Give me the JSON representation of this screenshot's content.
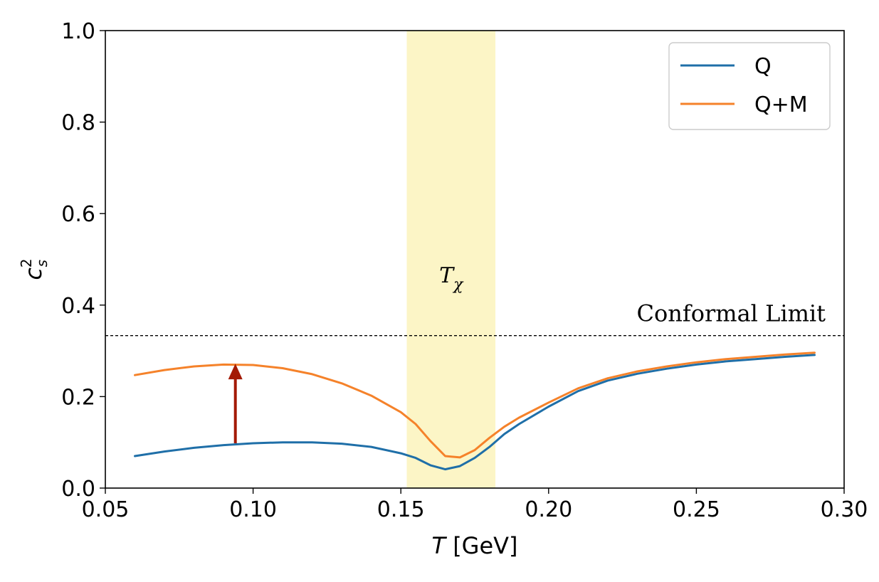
{
  "chart_data": {
    "type": "line",
    "xlabel_var": "T",
    "xlabel_unit": " [GeV]",
    "ylabel_var": "c",
    "ylabel_sup": "2",
    "ylabel_sub": "s",
    "xlim": [
      0.05,
      0.3
    ],
    "ylim": [
      0.0,
      1.0
    ],
    "xticks": [
      0.05,
      0.1,
      0.15,
      0.2,
      0.25,
      0.3
    ],
    "xtick_labels": [
      "0.05",
      "0.10",
      "0.15",
      "0.20",
      "0.25",
      "0.30"
    ],
    "yticks": [
      0.0,
      0.2,
      0.4,
      0.6,
      0.8,
      1.0
    ],
    "ytick_labels": [
      "0.0",
      "0.2",
      "0.4",
      "0.6",
      "0.8",
      "1.0"
    ],
    "grid": false,
    "legend_position": "top-right",
    "series": [
      {
        "name": "Q",
        "color": "#1f6fa8",
        "x": [
          0.06,
          0.07,
          0.08,
          0.09,
          0.1,
          0.11,
          0.12,
          0.13,
          0.14,
          0.15,
          0.155,
          0.16,
          0.165,
          0.17,
          0.175,
          0.18,
          0.185,
          0.19,
          0.2,
          0.21,
          0.22,
          0.23,
          0.24,
          0.25,
          0.26,
          0.27,
          0.28,
          0.29
        ],
        "y": [
          0.07,
          0.08,
          0.088,
          0.094,
          0.098,
          0.1,
          0.1,
          0.097,
          0.09,
          0.076,
          0.066,
          0.05,
          0.041,
          0.048,
          0.066,
          0.09,
          0.118,
          0.14,
          0.178,
          0.212,
          0.235,
          0.25,
          0.261,
          0.27,
          0.277,
          0.282,
          0.287,
          0.291
        ]
      },
      {
        "name": "Q+M",
        "color": "#f5822a",
        "x": [
          0.06,
          0.07,
          0.08,
          0.09,
          0.1,
          0.11,
          0.12,
          0.13,
          0.14,
          0.15,
          0.155,
          0.16,
          0.165,
          0.17,
          0.175,
          0.18,
          0.185,
          0.19,
          0.2,
          0.21,
          0.22,
          0.23,
          0.24,
          0.25,
          0.26,
          0.27,
          0.28,
          0.29
        ],
        "y": [
          0.247,
          0.258,
          0.266,
          0.27,
          0.269,
          0.262,
          0.249,
          0.229,
          0.202,
          0.166,
          0.14,
          0.103,
          0.07,
          0.067,
          0.083,
          0.11,
          0.134,
          0.154,
          0.187,
          0.218,
          0.24,
          0.255,
          0.266,
          0.275,
          0.282,
          0.287,
          0.292,
          0.296
        ]
      }
    ],
    "band": {
      "x_start": 0.152,
      "x_end": 0.182,
      "color": "#fcf5c6"
    },
    "band_label_main": "T",
    "band_label_sub": "χ",
    "reference_line": {
      "y": 0.3333,
      "label": "Conformal Limit"
    },
    "arrow": {
      "x": 0.094,
      "y_from": 0.098,
      "y_to": 0.272,
      "color": "#a31a05"
    }
  }
}
